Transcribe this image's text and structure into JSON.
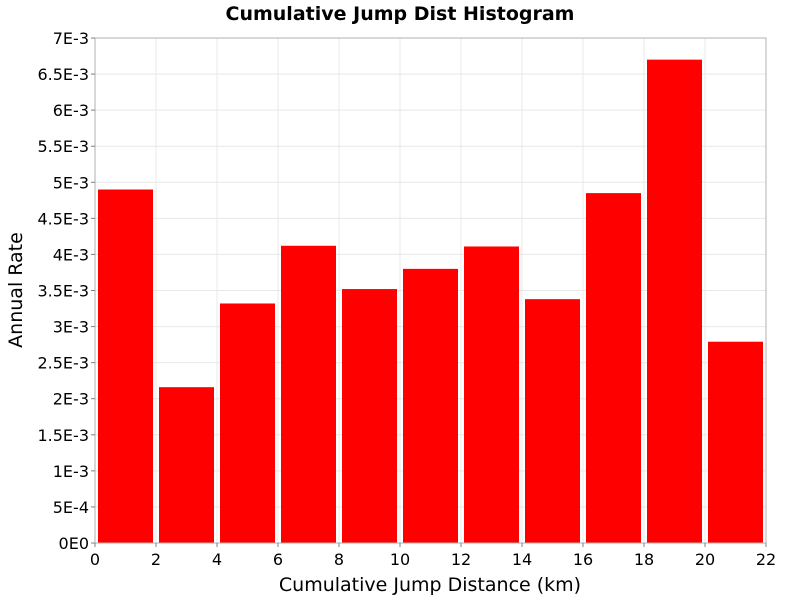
{
  "chart_data": {
    "type": "bar",
    "title": "Cumulative Jump Dist Histogram",
    "xlabel": "Cumulative Jump Distance (km)",
    "ylabel": "Annual Rate",
    "bar_color": "#ff0000",
    "grid_color": "#e8e8e8",
    "grid": true,
    "xlim": [
      0,
      22
    ],
    "ylim": [
      0,
      0.007
    ],
    "x_ticks": [
      "0",
      "2",
      "4",
      "6",
      "8",
      "10",
      "12",
      "14",
      "16",
      "18",
      "20",
      "22"
    ],
    "y_ticks": [
      "0E0",
      "5E-4",
      "1E-3",
      "1.5E-3",
      "2E-3",
      "2.5E-3",
      "3E-3",
      "3.5E-3",
      "4E-3",
      "4.5E-3",
      "5E-3",
      "5.5E-3",
      "6E-3",
      "6.5E-3",
      "7E-3"
    ],
    "bins": [
      {
        "from": 0,
        "to": 2,
        "value": 0.0049
      },
      {
        "from": 2,
        "to": 4,
        "value": 0.00216
      },
      {
        "from": 4,
        "to": 6,
        "value": 0.00332
      },
      {
        "from": 6,
        "to": 8,
        "value": 0.00412
      },
      {
        "from": 8,
        "to": 10,
        "value": 0.00352
      },
      {
        "from": 10,
        "to": 12,
        "value": 0.0038
      },
      {
        "from": 12,
        "to": 14,
        "value": 0.00411
      },
      {
        "from": 14,
        "to": 16,
        "value": 0.00338
      },
      {
        "from": 16,
        "to": 18,
        "value": 0.00485
      },
      {
        "from": 18,
        "to": 20,
        "value": 0.0067
      },
      {
        "from": 20,
        "to": 22,
        "value": 0.00279
      }
    ]
  }
}
